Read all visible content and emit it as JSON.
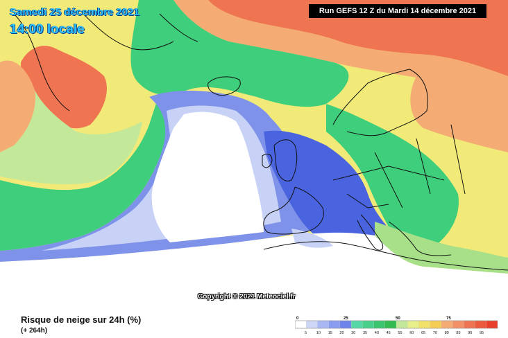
{
  "header": {
    "date": "Samedi 25 décembre 2021",
    "time": "14:00 locale",
    "run": "Run GEFS 12 Z du Mardi 14 décembre 2021"
  },
  "copyright": "Copyright © 2021 Meteociel.fr",
  "footer": {
    "title": "Risque de neige sur 24h (%)",
    "subtitle": "(+ 264h)"
  },
  "legend": {
    "major_ticks": [
      "0",
      "25",
      "50",
      "75"
    ],
    "minor_ticks": [
      "5",
      "10",
      "15",
      "20",
      "30",
      "35",
      "40",
      "45",
      "55",
      "60",
      "65",
      "70",
      "80",
      "85",
      "90",
      "95"
    ],
    "colors": [
      "#ffffff",
      "#cfd7f7",
      "#a9b7f3",
      "#8a9cef",
      "#6f84ea",
      "#55d8a6",
      "#48cf8a",
      "#3bc46e",
      "#33bb52",
      "#c4e89a",
      "#e6ef8a",
      "#f3e26a",
      "#f5cd55",
      "#f4ac74",
      "#f29068",
      "#ef7452",
      "#eb5a3c",
      "#e8402a"
    ]
  },
  "map_colors": {
    "ocean_white": "#ffffff",
    "light_blue": "#c8d2f6",
    "blue": "#7f92ea",
    "dark_blue": "#4a63de",
    "green": "#3fce7c",
    "light_green": "#a8e08a",
    "yellow": "#f1ea78",
    "orange": "#f4b06a",
    "red": "#ec6a4c",
    "border": "#101010"
  }
}
